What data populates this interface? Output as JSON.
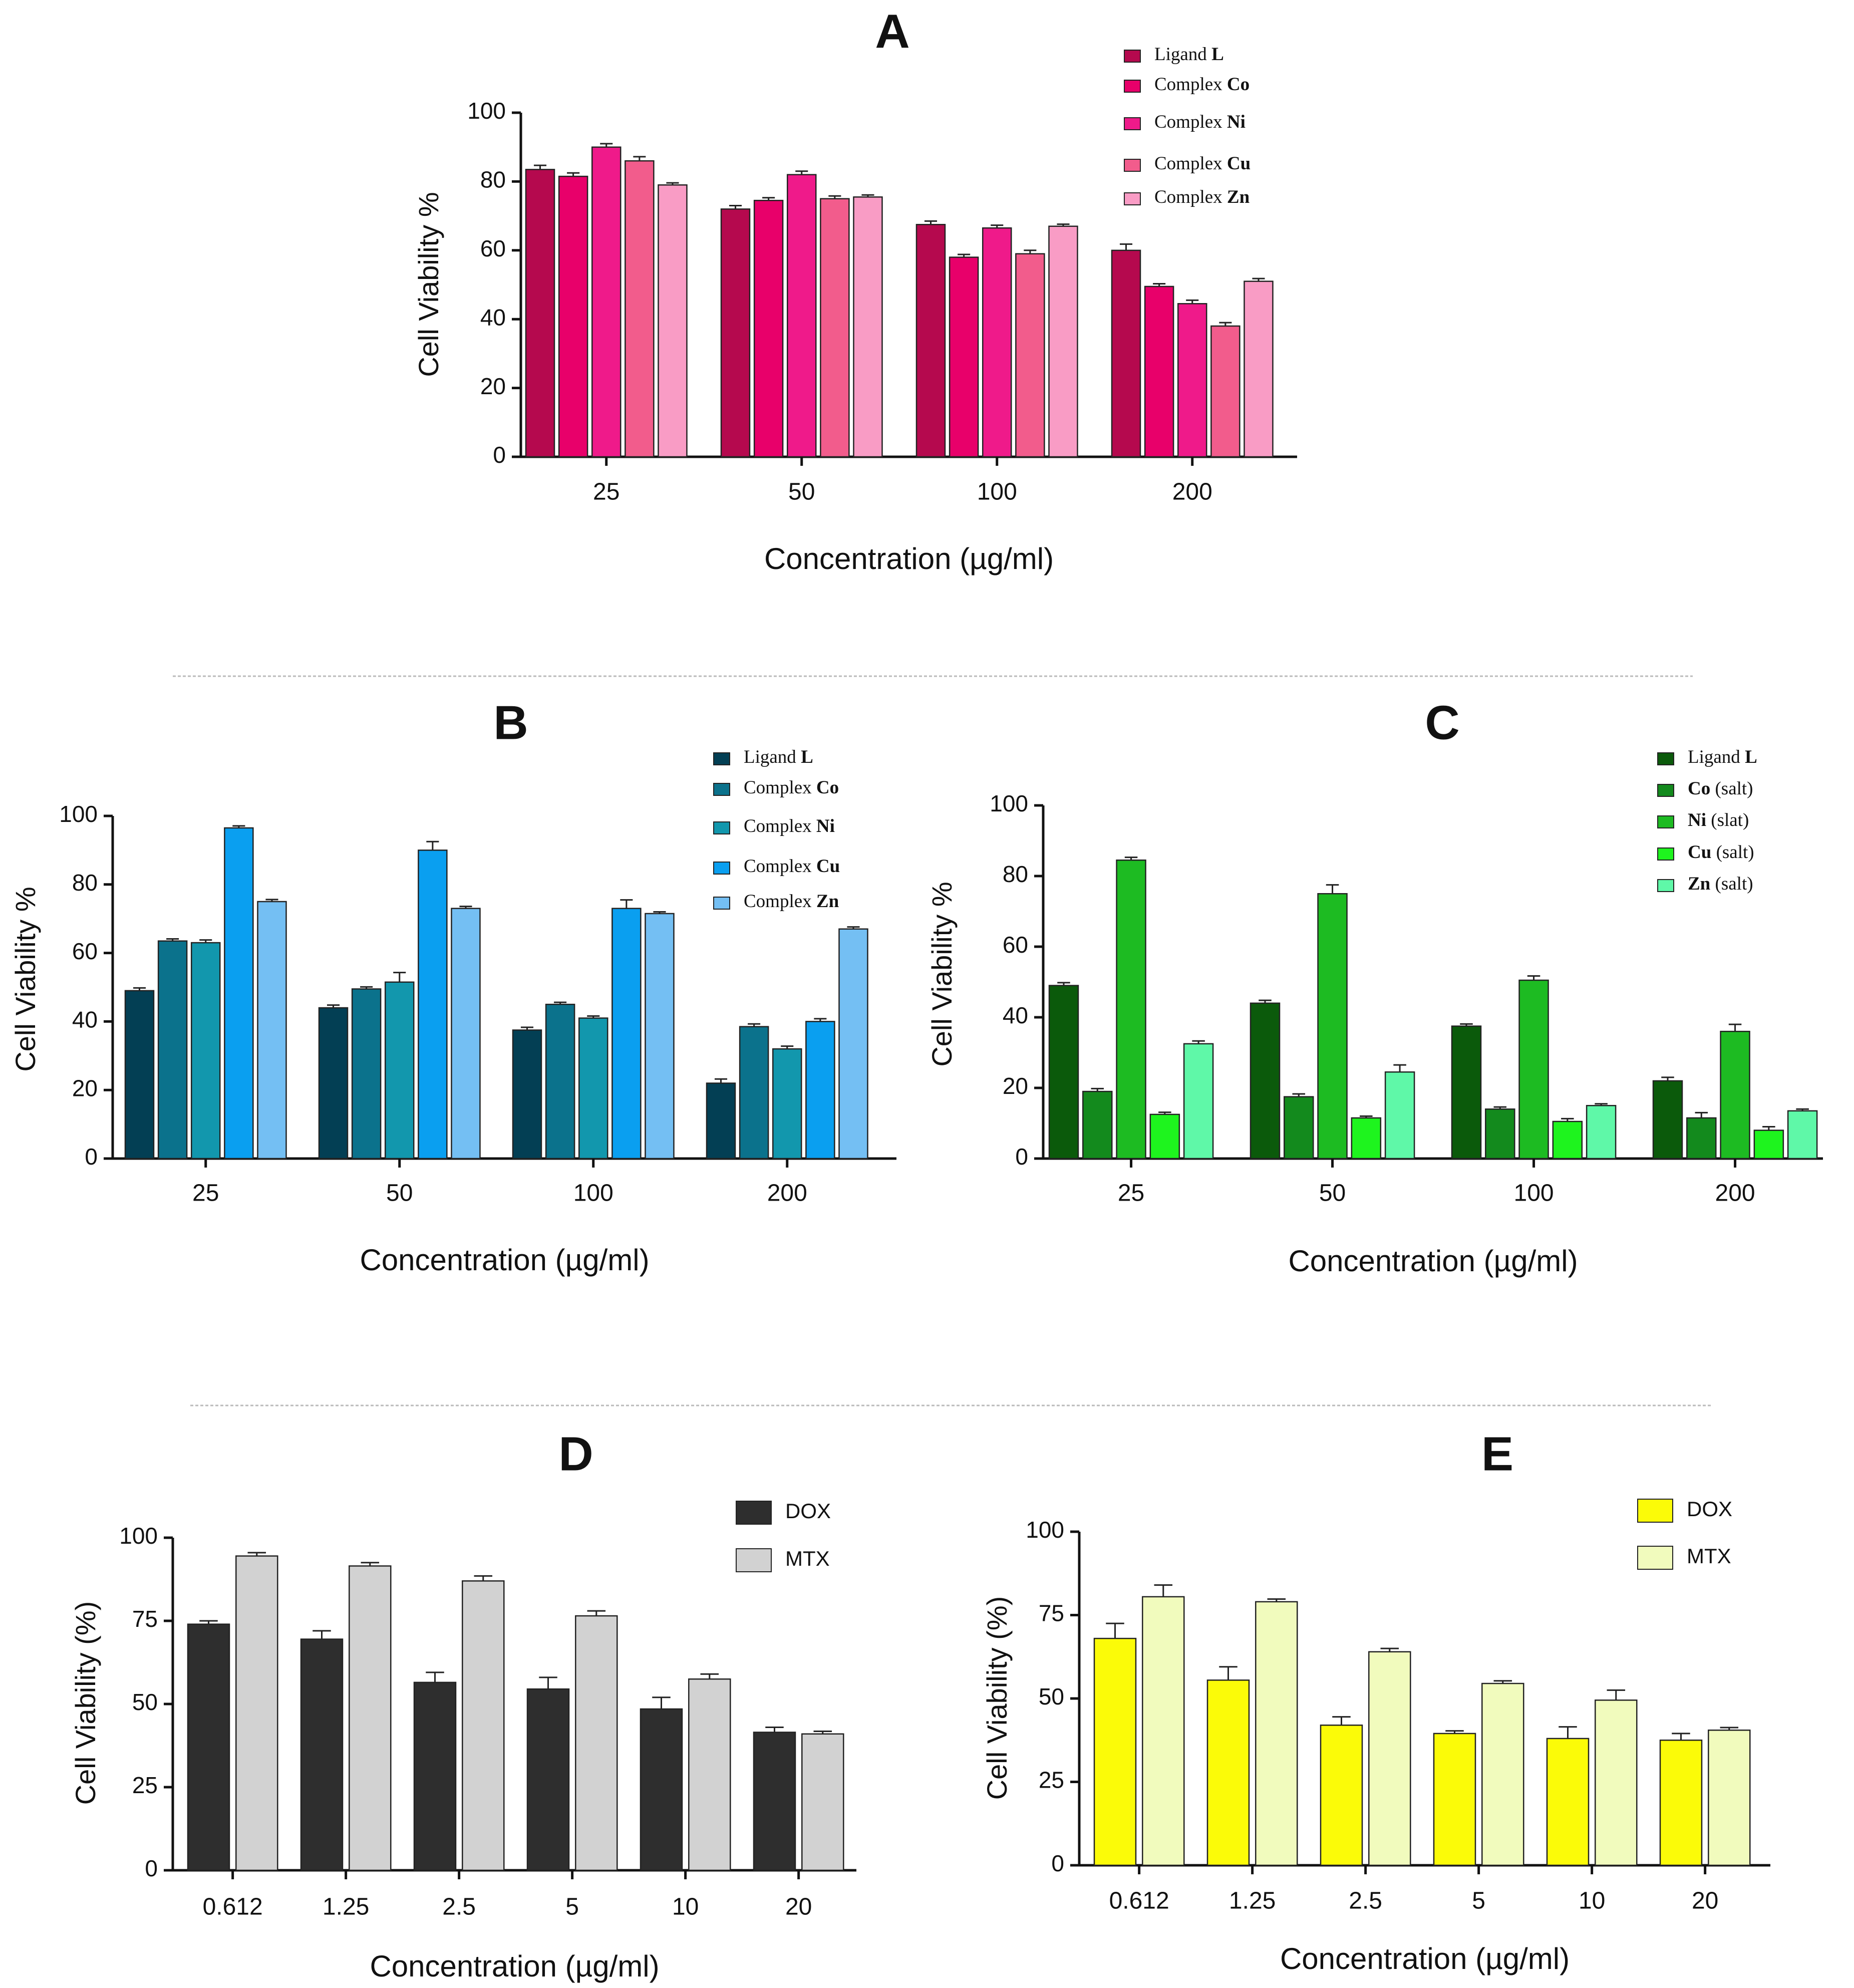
{
  "colors": {
    "axis": "#111111",
    "separator": "#bbbbbb",
    "A": [
      "#b5094e",
      "#e8006a",
      "#ef1a8a",
      "#f25c8c",
      "#f99cc5"
    ],
    "B": [
      "#033f54",
      "#0b728c",
      "#1297ad",
      "#0a9ff0",
      "#74bff3"
    ],
    "C": [
      "#0b5a0b",
      "#138a1d",
      "#1dbb22",
      "#1ef41e",
      "#5ff8a8"
    ],
    "D": [
      "#2e2e2e",
      "#d2d2d2"
    ],
    "E": [
      "#fbfb08",
      "#f1fbbd"
    ]
  },
  "chart_data": [
    {
      "id": "A",
      "panel_label": "A",
      "type": "bar",
      "title": "",
      "xlabel": "Concentration (µg/ml)",
      "ylabel": "Cell Viability %",
      "ylim": [
        0,
        100
      ],
      "yticks": [
        "0",
        "20",
        "40",
        "60",
        "80",
        "100"
      ],
      "categories": [
        "25",
        "50",
        "100",
        "200"
      ],
      "series": [
        {
          "name": "Ligand",
          "name_bold": "L",
          "values": [
            83.5,
            72,
            67.5,
            60
          ],
          "errors": [
            1.2,
            1.0,
            1.0,
            1.8
          ]
        },
        {
          "name": "Complex",
          "name_bold": "Co",
          "values": [
            81.5,
            74.5,
            58,
            49.5
          ],
          "errors": [
            1.0,
            0.8,
            0.8,
            0.8
          ]
        },
        {
          "name": "Complex",
          "name_bold": "Ni",
          "values": [
            90,
            82,
            66.5,
            44.5
          ],
          "errors": [
            1.0,
            1.0,
            0.8,
            1.0
          ]
        },
        {
          "name": "Complex",
          "name_bold": "Cu",
          "values": [
            86,
            75,
            59,
            38
          ],
          "errors": [
            1.2,
            0.8,
            1.0,
            1.0
          ]
        },
        {
          "name": "Complex",
          "name_bold": "Zn",
          "values": [
            79,
            75.5,
            67,
            51
          ],
          "errors": [
            0.6,
            0.6,
            0.6,
            0.8
          ]
        }
      ]
    },
    {
      "id": "B",
      "panel_label": "B",
      "type": "bar",
      "title": "",
      "xlabel": "Concentration (µg/ml)",
      "ylabel": "Cell Viability %",
      "ylim": [
        0,
        100
      ],
      "yticks": [
        "0",
        "20",
        "40",
        "60",
        "80",
        "100"
      ],
      "categories": [
        "25",
        "50",
        "100",
        "200"
      ],
      "series": [
        {
          "name": "Ligand",
          "name_bold": "L",
          "values": [
            49,
            44,
            37.5,
            22
          ],
          "errors": [
            0.8,
            0.8,
            0.8,
            1.2
          ]
        },
        {
          "name": "Complex",
          "name_bold": "Co",
          "values": [
            63.5,
            49.5,
            45,
            38.5
          ],
          "errors": [
            0.6,
            0.6,
            0.6,
            0.8
          ]
        },
        {
          "name": "Complex",
          "name_bold": "Ni",
          "values": [
            63,
            51.5,
            41,
            32
          ],
          "errors": [
            0.8,
            2.8,
            0.6,
            0.8
          ]
        },
        {
          "name": "Complex",
          "name_bold": "Cu",
          "values": [
            96.5,
            90,
            73,
            40
          ],
          "errors": [
            0.6,
            2.5,
            2.5,
            0.8
          ]
        },
        {
          "name": "Complex",
          "name_bold": "Zn",
          "values": [
            75,
            73,
            71.5,
            67
          ],
          "errors": [
            0.6,
            0.6,
            0.5,
            0.6
          ]
        }
      ]
    },
    {
      "id": "C",
      "panel_label": "C",
      "type": "bar",
      "title": "",
      "xlabel": "Concentration (µg/ml)",
      "ylabel": "Cell Viability %",
      "ylim": [
        0,
        100
      ],
      "yticks": [
        "0",
        "20",
        "40",
        "60",
        "80",
        "100"
      ],
      "categories": [
        "25",
        "50",
        "100",
        "200"
      ],
      "series": [
        {
          "name": "Ligand",
          "name_bold": "L",
          "values": [
            49,
            44,
            37.5,
            22
          ],
          "errors": [
            0.8,
            0.8,
            0.6,
            1.0
          ]
        },
        {
          "name_bold": "Co",
          "name": "(salt)",
          "values": [
            19,
            17.5,
            14,
            11.5
          ],
          "errors": [
            0.8,
            0.8,
            0.6,
            1.5
          ]
        },
        {
          "name_bold": "Ni",
          "name": "(slat)",
          "values": [
            84.5,
            75,
            50.5,
            36
          ],
          "errors": [
            0.8,
            2.5,
            1.2,
            2.0
          ]
        },
        {
          "name_bold": "Cu",
          "name": "(salt)",
          "values": [
            12.5,
            11.5,
            10.5,
            8
          ],
          "errors": [
            0.6,
            0.5,
            0.8,
            1.0
          ]
        },
        {
          "name_bold": "Zn",
          "name": "(salt)",
          "values": [
            32.5,
            24.5,
            15,
            13.5
          ],
          "errors": [
            0.8,
            2.0,
            0.5,
            0.5
          ]
        }
      ]
    },
    {
      "id": "D",
      "panel_label": "D",
      "type": "bar",
      "title": "",
      "xlabel": "Concentration (µg/ml)",
      "ylabel": "Cell Viability (%)",
      "ylim": [
        0,
        100
      ],
      "yticks": [
        "0",
        "25",
        "50",
        "75",
        "100"
      ],
      "categories": [
        "0.612",
        "1.25",
        "2.5",
        "5",
        "10",
        "20"
      ],
      "series": [
        {
          "name": "DOX",
          "values": [
            74,
            69.5,
            56.5,
            54.5,
            48.5,
            41.5
          ],
          "errors": [
            1.0,
            2.5,
            3.0,
            3.5,
            3.5,
            1.5
          ]
        },
        {
          "name": "MTX",
          "values": [
            94.5,
            91.5,
            87,
            76.5,
            57.5,
            41
          ],
          "errors": [
            1.0,
            1.0,
            1.5,
            1.5,
            1.5,
            0.8
          ]
        }
      ]
    },
    {
      "id": "E",
      "panel_label": "E",
      "type": "bar",
      "title": "",
      "xlabel": "Concentration (µg/ml)",
      "ylabel": "Cell Viability (%)",
      "ylim": [
        0,
        100
      ],
      "yticks": [
        "0",
        "25",
        "50",
        "75",
        "100"
      ],
      "categories": [
        "0.612",
        "1.25",
        "2.5",
        "5",
        "10",
        "20"
      ],
      "series": [
        {
          "name": "DOX",
          "values": [
            68,
            55.5,
            42,
            39.5,
            38,
            37.5
          ],
          "errors": [
            4.5,
            4.0,
            2.5,
            0.8,
            3.5,
            2.0
          ]
        },
        {
          "name": "MTX",
          "values": [
            80.5,
            79,
            64,
            54.5,
            49.5,
            40.5
          ],
          "errors": [
            3.5,
            0.8,
            1.0,
            0.8,
            3.0,
            0.8
          ]
        }
      ]
    }
  ]
}
